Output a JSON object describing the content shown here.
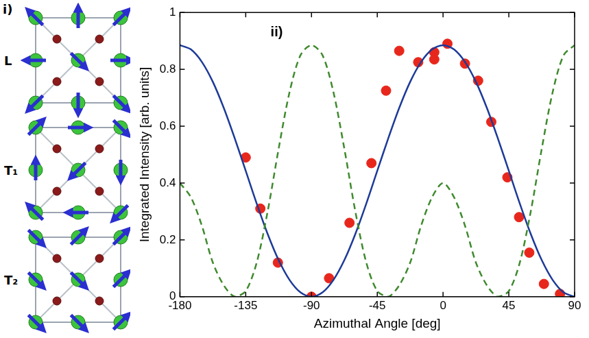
{
  "panel_i": {
    "label": "i)",
    "structures": [
      "L",
      "T₁",
      "T₂"
    ]
  },
  "chart_data": {
    "type": "scatter",
    "annotations": [
      {
        "text": "ii)",
        "x": -118,
        "y": 0.93
      }
    ],
    "x_label": "Azimuthal Angle [deg]",
    "y_label": "Integrated Intensity [arb. units]",
    "xlim": [
      -180,
      90
    ],
    "xticks": [
      -180,
      -135,
      -90,
      -45,
      0,
      45,
      90
    ],
    "ylim": [
      0,
      1
    ],
    "yticks": [
      0,
      0.2,
      0.4,
      0.6,
      0.8,
      1
    ],
    "grid": false,
    "series": [
      {
        "type": "line",
        "line_style": "dashed",
        "color": "#3f8a2e",
        "x": [
          -180,
          -172.5,
          -165,
          -157.5,
          -150,
          -142.5,
          -135,
          -127.5,
          -120,
          -112.5,
          -105,
          -97.5,
          -90,
          -82.5,
          -75,
          -67.5,
          -60,
          -52.5,
          -45,
          -37.5,
          -30,
          -22.5,
          -15,
          -7.5,
          0,
          7.5,
          15,
          22.5,
          30,
          37.5,
          45,
          52.5,
          60,
          67.5,
          75,
          82.5,
          90
        ],
        "values": [
          0.4,
          0.35,
          0.25,
          0.12,
          0.04,
          0.0,
          0.02,
          0.12,
          0.3,
          0.52,
          0.72,
          0.85,
          0.885,
          0.85,
          0.72,
          0.52,
          0.3,
          0.12,
          0.02,
          0.0,
          0.04,
          0.12,
          0.25,
          0.35,
          0.4,
          0.35,
          0.25,
          0.12,
          0.04,
          0.0,
          0.02,
          0.12,
          0.3,
          0.52,
          0.72,
          0.85,
          0.885
        ]
      },
      {
        "type": "line",
        "line_style": "solid",
        "color": "#1c3a98",
        "x": [
          -180,
          -172.5,
          -165,
          -157.5,
          -150,
          -142.5,
          -135,
          -127.5,
          -120,
          -112.5,
          -105,
          -97.5,
          -90,
          -82.5,
          -75,
          -67.5,
          -60,
          -52.5,
          -45,
          -37.5,
          -30,
          -22.5,
          -15,
          -7.5,
          0,
          7.5,
          15,
          22.5,
          30,
          37.5,
          45,
          52.5,
          60,
          67.5,
          75,
          82.5,
          90
        ],
        "values": [
          0.885,
          0.87,
          0.826,
          0.756,
          0.664,
          0.557,
          0.443,
          0.328,
          0.221,
          0.129,
          0.059,
          0.015,
          0.0,
          0.015,
          0.059,
          0.129,
          0.221,
          0.328,
          0.443,
          0.557,
          0.664,
          0.756,
          0.826,
          0.87,
          0.885,
          0.87,
          0.826,
          0.756,
          0.664,
          0.557,
          0.443,
          0.328,
          0.221,
          0.129,
          0.059,
          0.015,
          0.0
        ]
      },
      {
        "type": "scatter",
        "marker": "circle",
        "color": "#e8271c",
        "x": [
          -135,
          -125,
          -113,
          -90,
          -78,
          -64,
          -49,
          -39,
          -30,
          -17,
          -6,
          -6,
          3,
          15,
          24,
          33,
          44,
          52,
          59,
          69,
          80
        ],
        "values": [
          0.49,
          0.31,
          0.12,
          0.0,
          0.065,
          0.26,
          0.47,
          0.725,
          0.865,
          0.825,
          0.835,
          0.86,
          0.89,
          0.82,
          0.76,
          0.615,
          0.42,
          0.28,
          0.155,
          0.045,
          0.01
        ]
      }
    ]
  }
}
